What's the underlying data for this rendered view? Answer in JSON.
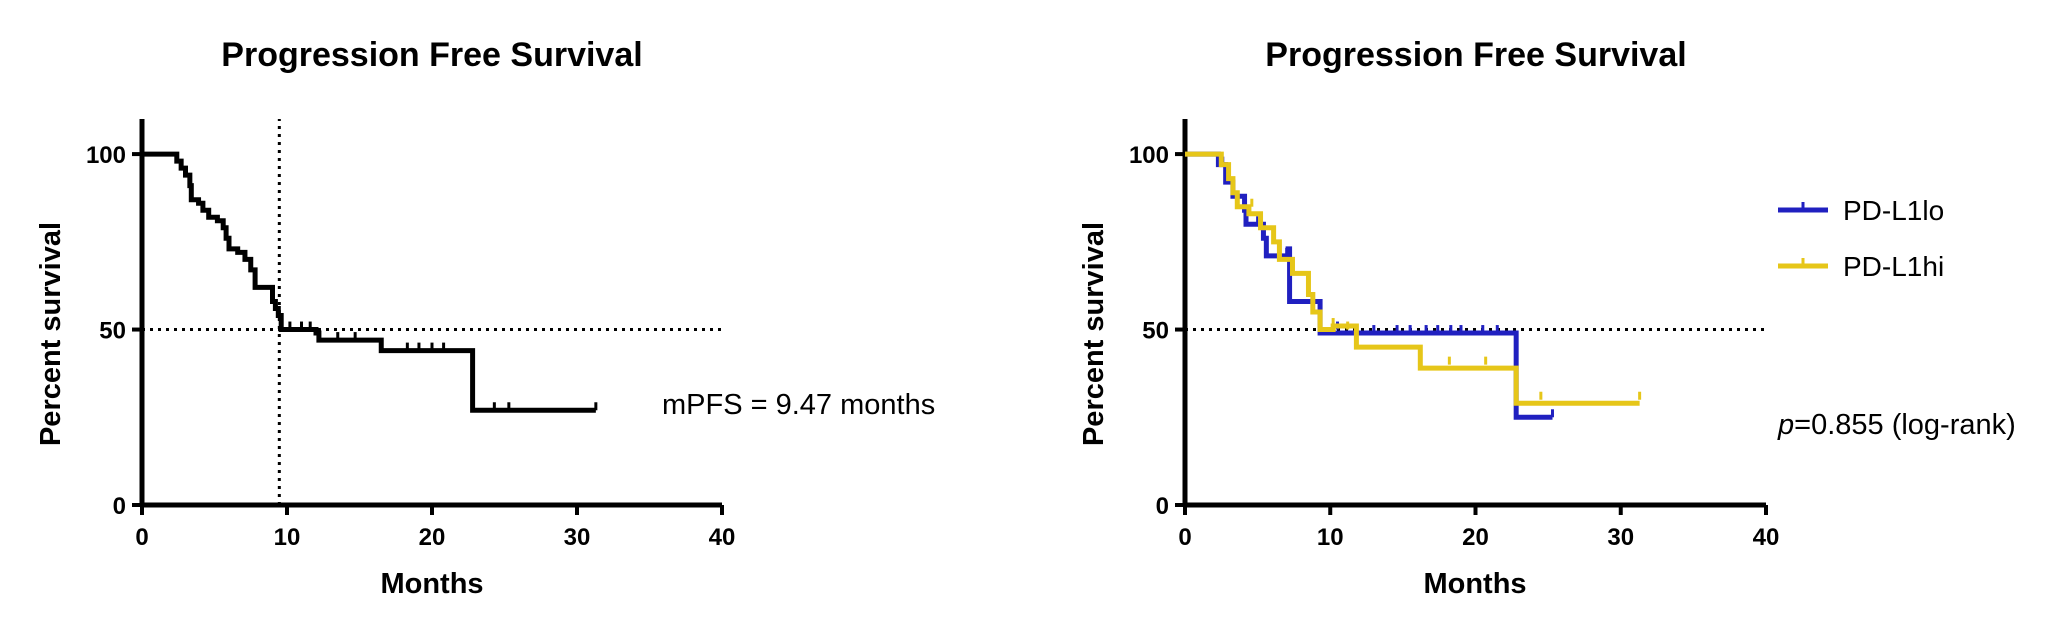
{
  "chart_data": [
    {
      "type": "line",
      "title": "Progression Free Survival",
      "xlabel": "Months",
      "ylabel": "Percent survival",
      "xlim": [
        0,
        40
      ],
      "ylim": [
        0,
        110
      ],
      "xticks": [
        0,
        10,
        20,
        30,
        40
      ],
      "yticks": [
        0,
        50,
        100
      ],
      "grid": false,
      "reference_lines": {
        "y": 50,
        "x": 9.47
      },
      "annotation": "mPFS = 9.47 months",
      "series": [
        {
          "color": "#000000",
          "steps": [
            [
              0,
              100
            ],
            [
              2.4,
              98
            ],
            [
              2.7,
              96
            ],
            [
              3.0,
              94
            ],
            [
              3.3,
              91
            ],
            [
              3.4,
              87
            ],
            [
              3.9,
              86
            ],
            [
              4.2,
              84
            ],
            [
              4.6,
              82
            ],
            [
              5.2,
              81
            ],
            [
              5.6,
              79
            ],
            [
              5.8,
              76
            ],
            [
              6.0,
              73
            ],
            [
              6.6,
              72
            ],
            [
              7.1,
              70
            ],
            [
              7.5,
              67
            ],
            [
              7.8,
              62
            ],
            [
              9.0,
              58
            ],
            [
              9.2,
              56
            ],
            [
              9.4,
              54
            ],
            [
              9.6,
              50
            ],
            [
              12.0,
              49
            ],
            [
              12.2,
              47
            ],
            [
              16.5,
              44
            ],
            [
              21.5,
              44
            ],
            [
              22.8,
              27
            ],
            [
              31.3,
              27
            ]
          ],
          "censored": [
            [
              10.2,
              50
            ],
            [
              11.0,
              50
            ],
            [
              11.6,
              50
            ],
            [
              13.5,
              47
            ],
            [
              14.7,
              47
            ],
            [
              18.3,
              44
            ],
            [
              19.1,
              44
            ],
            [
              20.0,
              44
            ],
            [
              20.8,
              44
            ],
            [
              24.3,
              27
            ],
            [
              25.3,
              27
            ],
            [
              31.3,
              27
            ]
          ]
        }
      ]
    },
    {
      "type": "line",
      "title": "Progression Free Survival",
      "xlabel": "Months",
      "ylabel": "Percent survival",
      "xlim": [
        0,
        40
      ],
      "ylim": [
        0,
        110
      ],
      "xticks": [
        0,
        10,
        20,
        30,
        40
      ],
      "yticks": [
        0,
        50,
        100
      ],
      "grid": false,
      "reference_lines": {
        "y": 50
      },
      "annotation_italic": "p",
      "annotation_rest": "=0.855 (log-rank)",
      "legend_position": "right",
      "series": [
        {
          "name": "PD-L1lo",
          "color": "#2020c0",
          "steps": [
            [
              0,
              100
            ],
            [
              2.3,
              97
            ],
            [
              2.8,
              92
            ],
            [
              3.3,
              88
            ],
            [
              4.1,
              84
            ],
            [
              4.2,
              80
            ],
            [
              5.4,
              76
            ],
            [
              5.6,
              71
            ],
            [
              7.1,
              73
            ],
            [
              7.2,
              58
            ],
            [
              9.3,
              49
            ],
            [
              22.8,
              25
            ],
            [
              25.3,
              25
            ]
          ],
          "censored": [
            [
              2.6,
              97
            ],
            [
              5.0,
              80
            ],
            [
              7.0,
              71
            ],
            [
              10.5,
              50
            ],
            [
              13.0,
              49
            ],
            [
              14.6,
              49
            ],
            [
              15.5,
              49
            ],
            [
              16.6,
              49
            ],
            [
              17.4,
              49
            ],
            [
              18.3,
              49
            ],
            [
              19.0,
              49
            ],
            [
              20.5,
              49
            ],
            [
              21.5,
              49
            ],
            [
              25.3,
              25
            ]
          ]
        },
        {
          "name": "PD-L1hi",
          "color": "#e6c619",
          "steps": [
            [
              0,
              100
            ],
            [
              2.5,
              97
            ],
            [
              3.0,
              93
            ],
            [
              3.3,
              89
            ],
            [
              3.6,
              85
            ],
            [
              4.4,
              83
            ],
            [
              5.2,
              79
            ],
            [
              6.1,
              75
            ],
            [
              6.5,
              70
            ],
            [
              7.4,
              66
            ],
            [
              8.5,
              60
            ],
            [
              8.8,
              55
            ],
            [
              9.3,
              50
            ],
            [
              10.2,
              51
            ],
            [
              11.8,
              45
            ],
            [
              16.2,
              39
            ],
            [
              22.8,
              29
            ],
            [
              31.3,
              29
            ]
          ],
          "censored": [
            [
              4.6,
              85
            ],
            [
              10.2,
              51
            ],
            [
              11.2,
              50
            ],
            [
              18.2,
              40
            ],
            [
              20.7,
              40
            ],
            [
              24.5,
              30
            ],
            [
              31.3,
              30
            ]
          ]
        }
      ]
    }
  ]
}
